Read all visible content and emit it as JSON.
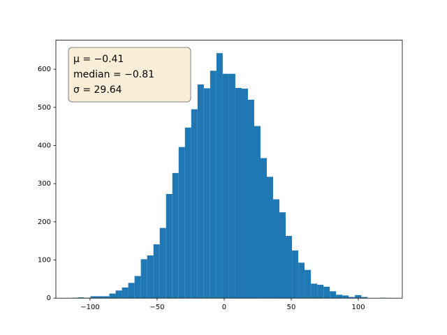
{
  "chart_data": {
    "type": "histogram",
    "color": "#1f77b4",
    "bins": [
      -113.8,
      -109.1,
      -104.41,
      -99.71,
      -95.02,
      -90.32,
      -85.62,
      -80.93,
      -76.23,
      -71.54,
      -66.84,
      -62.14,
      -57.45,
      -52.75,
      -48.06,
      -43.36,
      -38.66,
      -33.97,
      -29.27,
      -24.58,
      -19.88,
      -15.18,
      -10.49,
      -5.79,
      -1.1,
      3.6,
      8.3,
      12.99,
      17.69,
      22.38,
      27.08,
      31.78,
      36.47,
      41.17,
      45.86,
      50.56,
      55.26,
      59.95,
      64.65,
      69.34,
      74.04,
      78.74,
      83.43,
      88.13,
      92.82,
      97.52,
      102.22,
      106.91,
      111.61,
      116.3,
      121.0
    ],
    "counts": [
      1,
      2,
      1,
      5,
      5,
      5,
      12,
      20,
      28,
      40,
      58,
      102,
      112,
      141,
      184,
      273,
      328,
      396,
      447,
      495,
      560,
      550,
      596,
      642,
      588,
      588,
      551,
      549,
      520,
      451,
      367,
      318,
      259,
      225,
      163,
      125,
      93,
      74,
      38,
      35,
      30,
      18,
      9,
      7,
      3,
      8,
      3,
      0,
      0,
      1
    ],
    "xlim": [
      -125.5,
      132.8
    ],
    "ylim": [
      0,
      676
    ],
    "xticks": [
      {
        "value": -100,
        "label": "−100"
      },
      {
        "value": -50,
        "label": "−50"
      },
      0,
      50,
      100
    ],
    "yticks": [
      0,
      100,
      200,
      300,
      400,
      500,
      600
    ],
    "grid": false,
    "annotation": [
      "μ = −0.41",
      "median = −0.81",
      "σ = 29.64"
    ]
  }
}
